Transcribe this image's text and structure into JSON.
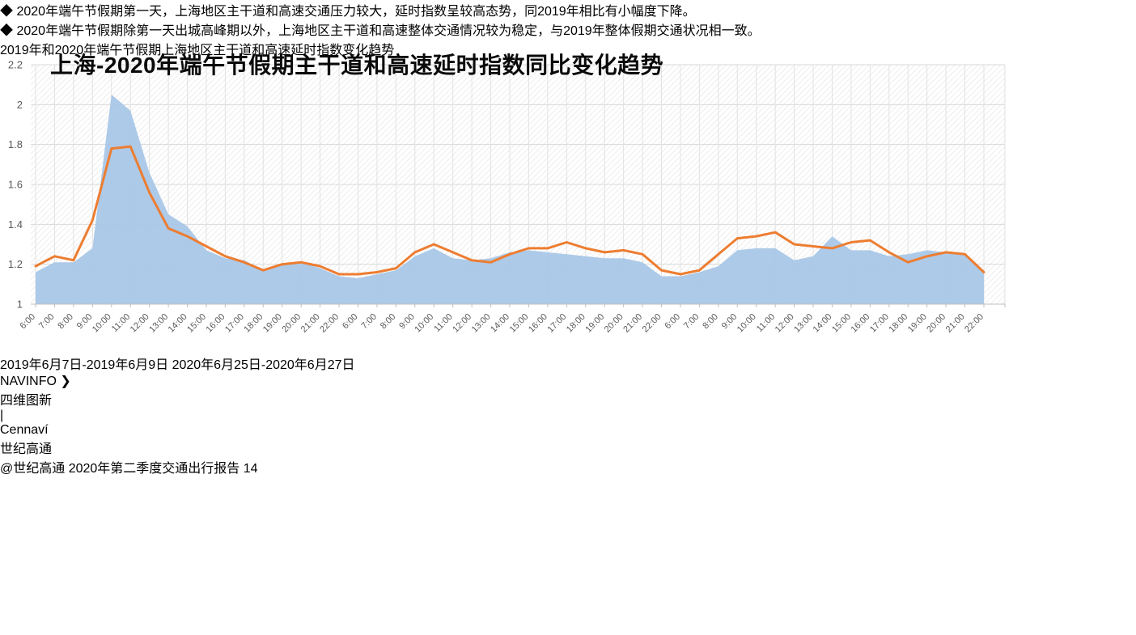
{
  "header": {
    "title": "上海-2020年端午节假期主干道和高速延时指数同比变化趋势",
    "accent_color": "#122E63"
  },
  "icons": {
    "bullet": "◆",
    "navinfo_arrow": "❯",
    "logo_divider": "|"
  },
  "bullets": [
    "2020年端午节假期第一天，上海地区主干道和高速交通压力较大，延时指数呈较高态势，同2019年相比有小幅度下降。",
    "2020年端午节假期除第一天出城高峰期以外，上海地区主干道和高速整体交通情况较为稳定，与2019年整体假期交通状况相一致。"
  ],
  "chart_data": {
    "type": "area",
    "title": "2019年和2020年端午节假期上海地区主干道和高速延时指数变化趋势",
    "xlabel": "",
    "ylabel": "",
    "ylim": [
      1.0,
      2.2
    ],
    "yticks": [
      1,
      1.2,
      1.4,
      1.6,
      1.8,
      2,
      2.2
    ],
    "ytick_labels": [
      "1",
      "1.2",
      "1.4",
      "1.6",
      "1.8",
      "2",
      "2.2"
    ],
    "grid": true,
    "plot_hatch": true,
    "legend_position": "bottom",
    "categories": [
      "6:00",
      "7:00",
      "8:00",
      "9:00",
      "10:00",
      "11:00",
      "12:00",
      "13:00",
      "14:00",
      "15:00",
      "16:00",
      "17:00",
      "18:00",
      "19:00",
      "20:00",
      "21:00",
      "22:00",
      "6:00",
      "7:00",
      "8:00",
      "9:00",
      "10:00",
      "11:00",
      "12:00",
      "13:00",
      "14:00",
      "15:00",
      "16:00",
      "17:00",
      "18:00",
      "19:00",
      "20:00",
      "21:00",
      "22:00",
      "6:00",
      "7:00",
      "8:00",
      "9:00",
      "10:00",
      "11:00",
      "12:00",
      "13:00",
      "14:00",
      "15:00",
      "16:00",
      "17:00",
      "18:00",
      "19:00",
      "20:00",
      "21:00",
      "22:00"
    ],
    "series": [
      {
        "name": "2019年6月7日-2019年6月9日",
        "type": "area",
        "color": "#A9C7E7",
        "values": [
          1.16,
          1.21,
          1.21,
          1.28,
          2.05,
          1.97,
          1.66,
          1.45,
          1.39,
          1.27,
          1.23,
          1.22,
          1.17,
          1.2,
          1.21,
          1.18,
          1.14,
          1.13,
          1.15,
          1.17,
          1.24,
          1.28,
          1.23,
          1.22,
          1.23,
          1.26,
          1.27,
          1.26,
          1.25,
          1.24,
          1.23,
          1.23,
          1.21,
          1.14,
          1.14,
          1.16,
          1.19,
          1.27,
          1.28,
          1.28,
          1.22,
          1.24,
          1.34,
          1.27,
          1.27,
          1.24,
          1.25,
          1.27,
          1.26,
          1.25,
          1.16
        ]
      },
      {
        "name": "2020年6月25日-2020年6月27日",
        "type": "line",
        "color": "#ED7D31",
        "values": [
          1.19,
          1.24,
          1.22,
          1.42,
          1.78,
          1.79,
          1.56,
          1.38,
          1.34,
          1.29,
          1.24,
          1.21,
          1.17,
          1.2,
          1.21,
          1.19,
          1.15,
          1.15,
          1.16,
          1.18,
          1.26,
          1.3,
          1.26,
          1.22,
          1.21,
          1.25,
          1.28,
          1.28,
          1.31,
          1.28,
          1.26,
          1.27,
          1.25,
          1.17,
          1.15,
          1.17,
          1.25,
          1.33,
          1.34,
          1.36,
          1.3,
          1.29,
          1.28,
          1.31,
          1.32,
          1.26,
          1.21,
          1.24,
          1.26,
          1.25,
          1.16
        ]
      }
    ]
  },
  "footer": {
    "navinfo_name": "NAVINFO",
    "navinfo_cn": "四维图新",
    "cennavi_name": "Cennaví",
    "cennavi_cn": "世纪高通",
    "credit": "@世纪高通  2020年第二季度交通出行报告",
    "page": "14"
  }
}
